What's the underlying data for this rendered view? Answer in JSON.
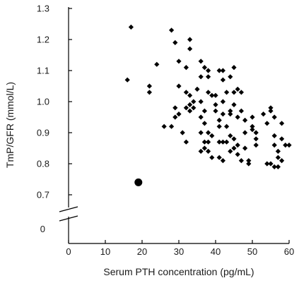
{
  "chart_data": {
    "type": "scatter",
    "xlabel": "Serum PTH concentration (pg/mL)",
    "ylabel": "TmP/GFR (mmol/L)",
    "xlim": [
      0,
      60
    ],
    "ylim": [
      0.7,
      1.3
    ],
    "axis_break": true,
    "grid": false,
    "x_ticks": [
      "0",
      "10",
      "20",
      "30",
      "40",
      "50",
      "60"
    ],
    "y_ticks": [
      "0.7",
      "0.8",
      "0.9",
      "1.0",
      "1.1",
      "1.2",
      "1.3"
    ],
    "y_zero_label": "0",
    "colors": {
      "points": "#000000",
      "axes": "#000000"
    },
    "series": [
      {
        "marker": "diamond",
        "points": [
          [
            17,
            1.24
          ],
          [
            16,
            1.07
          ],
          [
            22,
            1.05
          ],
          [
            22,
            1.03
          ],
          [
            24,
            1.12
          ],
          [
            28,
            1.23
          ],
          [
            29,
            1.19
          ],
          [
            30,
            1.13
          ],
          [
            33,
            1.2
          ],
          [
            33,
            1.17
          ],
          [
            32,
            1.11
          ],
          [
            30,
            1.05
          ],
          [
            29,
            0.98
          ],
          [
            30,
            0.96
          ],
          [
            29,
            0.95
          ],
          [
            31,
            0.9
          ],
          [
            32,
            0.87
          ],
          [
            26,
            0.92
          ],
          [
            28,
            0.92
          ],
          [
            32,
            1.03
          ],
          [
            33,
            1.02
          ],
          [
            33,
            0.99
          ],
          [
            34,
            0.98
          ],
          [
            32,
            0.98
          ],
          [
            34,
            1.0
          ],
          [
            33,
            0.97
          ],
          [
            36,
            1.13
          ],
          [
            37,
            1.11
          ],
          [
            36,
            1.08
          ],
          [
            38,
            1.08
          ],
          [
            38,
            1.1
          ],
          [
            38,
            1.03
          ],
          [
            35,
            1.04
          ],
          [
            36,
            1.0
          ],
          [
            37,
            0.97
          ],
          [
            36,
            0.95
          ],
          [
            37,
            0.93
          ],
          [
            36,
            0.9
          ],
          [
            38,
            0.9
          ],
          [
            37,
            0.87
          ],
          [
            39,
            0.89
          ],
          [
            38,
            0.87
          ],
          [
            36,
            0.84
          ],
          [
            37,
            0.85
          ],
          [
            38,
            0.84
          ],
          [
            39,
            0.82
          ],
          [
            39,
            1.02
          ],
          [
            40,
            1.02
          ],
          [
            40,
            0.99
          ],
          [
            40,
            0.97
          ],
          [
            41,
            0.94
          ],
          [
            41,
            1.1
          ],
          [
            42,
            1.1
          ],
          [
            42,
            1.07
          ],
          [
            43,
            1.03
          ],
          [
            42,
            1.0
          ],
          [
            42,
            0.96
          ],
          [
            41,
            0.92
          ],
          [
            41,
            0.87
          ],
          [
            42,
            0.87
          ],
          [
            41,
            0.82
          ],
          [
            42,
            0.81
          ],
          [
            43,
            0.87
          ],
          [
            43,
            0.92
          ],
          [
            44,
            0.96
          ],
          [
            44,
            0.97
          ],
          [
            45,
            1.11
          ],
          [
            44,
            1.08
          ],
          [
            45,
            1.03
          ],
          [
            45,
            0.99
          ],
          [
            46,
            1.04
          ],
          [
            47,
            1.03
          ],
          [
            46,
            0.95
          ],
          [
            44,
            0.89
          ],
          [
            45,
            0.88
          ],
          [
            46,
            0.86
          ],
          [
            45,
            0.85
          ],
          [
            44,
            0.84
          ],
          [
            46,
            0.83
          ],
          [
            47,
            0.81
          ],
          [
            48,
            0.85
          ],
          [
            48,
            0.9
          ],
          [
            48,
            0.94
          ],
          [
            47,
            0.97
          ],
          [
            49,
            0.81
          ],
          [
            49,
            0.8
          ],
          [
            50,
            0.95
          ],
          [
            50,
            0.92
          ],
          [
            50,
            0.91
          ],
          [
            51,
            0.9
          ],
          [
            51,
            0.88
          ],
          [
            51,
            0.86
          ],
          [
            53,
            0.96
          ],
          [
            54,
            0.93
          ],
          [
            55,
            0.97
          ],
          [
            55,
            0.98
          ],
          [
            56,
            0.95
          ],
          [
            54,
            0.8
          ],
          [
            55,
            0.8
          ],
          [
            56,
            0.89
          ],
          [
            56,
            0.86
          ],
          [
            57,
            0.84
          ],
          [
            57,
            0.82
          ],
          [
            58,
            0.81
          ],
          [
            58,
            0.93
          ],
          [
            58,
            0.88
          ],
          [
            59,
            0.86
          ],
          [
            60,
            0.86
          ],
          [
            57,
            0.79
          ],
          [
            56,
            0.79
          ]
        ]
      },
      {
        "marker": "circle",
        "points": [
          [
            19,
            0.74
          ]
        ]
      }
    ]
  }
}
